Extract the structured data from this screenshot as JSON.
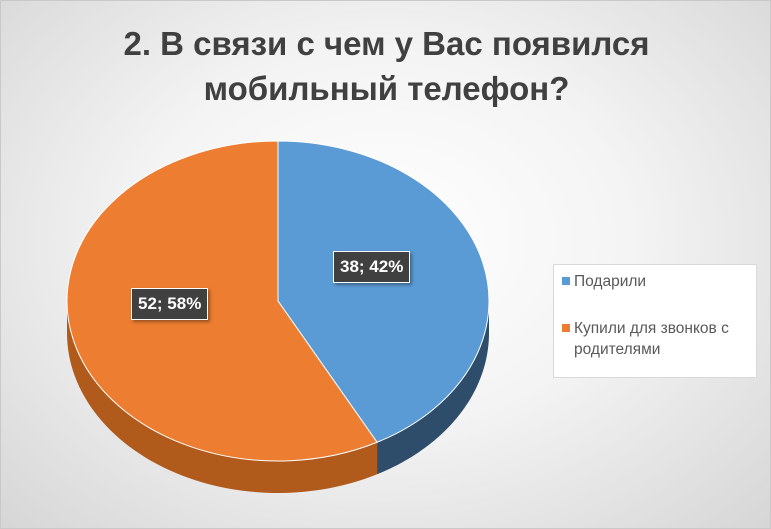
{
  "chart_data": {
    "type": "pie",
    "title": "2. В связи с чем у Вас появился мобильный телефон?",
    "title_lines": [
      "2. В связи с чем у Вас появился",
      "мобильный телефон?"
    ],
    "style": "3d",
    "legend_position": "right",
    "slices": [
      {
        "name": "Подарили",
        "value": 38,
        "percent": 42,
        "color": "#5b9bd5",
        "side_color": "#2e4d6b",
        "label": "38; 42%"
      },
      {
        "name": "Купили для звонков с родителями",
        "value": 52,
        "percent": 58,
        "color": "#ed7d31",
        "side_color": "#b05a1b",
        "label": "52; 58%"
      }
    ]
  }
}
